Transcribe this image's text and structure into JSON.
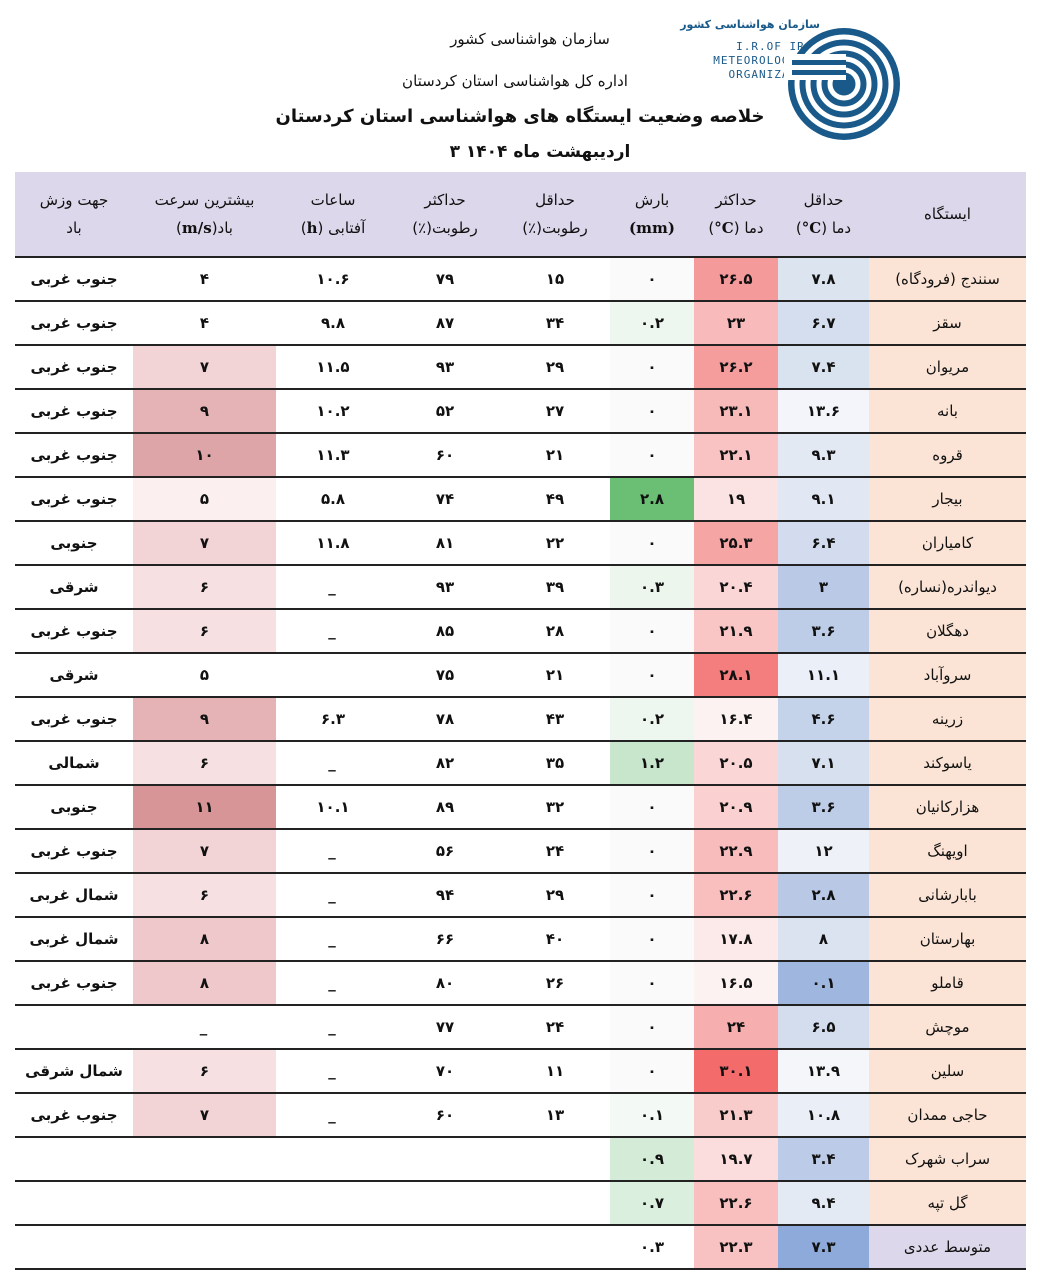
{
  "header": {
    "org": "سازمان هواشناسی کشور",
    "dept": "اداره کل هواشناسی استان کردستان",
    "title": "خلاصه وضعیت ایستگاه های هواشناسی استان کردستان",
    "date": "۳ اردیبهشت  ماه ۱۴۰۴"
  },
  "logo": {
    "fa_name": "سازمان هواشناسی کشور",
    "line1": "I.R.OF IRAN",
    "line2": "METEOROLOGICAL",
    "line3": "ORGANIZATION",
    "color": "#1a5a8a"
  },
  "columns": [
    {
      "key": "station",
      "l1": "ایستگاه",
      "l2": ""
    },
    {
      "key": "tmin",
      "l1": "حداقل",
      "l2": "دما (",
      "unit": "°C",
      "tail": ")"
    },
    {
      "key": "tmax",
      "l1": "حداکثر",
      "l2": "دما (",
      "unit": "°C",
      "tail": ")"
    },
    {
      "key": "precip",
      "l1": "بارش",
      "l2": "",
      "unit": "(mm)",
      "tail": ""
    },
    {
      "key": "hmin",
      "l1": "حداقل",
      "l2": "رطوبت(٪)"
    },
    {
      "key": "hmax",
      "l1": "حداکثر",
      "l2": "رطوبت(٪)"
    },
    {
      "key": "sun",
      "l1": "ساعات",
      "l2": "آفتابی (",
      "unit": "h",
      "tail": ")"
    },
    {
      "key": "wind",
      "l1": "بیشترین سرعت",
      "l2": "باد(",
      "unit": "m/s",
      "tail": ")"
    },
    {
      "key": "dir",
      "l1": "جهت وزش",
      "l2": "باد"
    }
  ],
  "rows": [
    {
      "station": "سنندج (فرودگاه)",
      "tmin": "۷.۸",
      "tmax": "۲۶.۵",
      "precip": "۰",
      "hmin": "۱۵",
      "hmax": "۷۹",
      "sun": "۱۰.۶",
      "wind": "۴",
      "dir": "جنوب غربی",
      "c_tmin": "#dce4f0",
      "c_tmax": "#f59a9a",
      "c_precip": "#fafafa",
      "c_wind": "#ffffff"
    },
    {
      "station": "سقز",
      "tmin": "۶.۷",
      "tmax": "۲۳",
      "precip": "۰.۲",
      "hmin": "۳۴",
      "hmax": "۸۷",
      "sun": "۹.۸",
      "wind": "۴",
      "dir": "جنوب غربی",
      "c_tmin": "#d4deee",
      "c_tmax": "#f8baba",
      "c_precip": "#eef7ef",
      "c_wind": "#ffffff"
    },
    {
      "station": "مریوان",
      "tmin": "۷.۴",
      "tmax": "۲۶.۲",
      "precip": "۰",
      "hmin": "۲۹",
      "hmax": "۹۳",
      "sun": "۱۱.۵",
      "wind": "۷",
      "dir": "جنوب غربی",
      "c_tmin": "#d9e2ef",
      "c_tmax": "#f59d9d",
      "c_precip": "#fafafa",
      "c_wind": "#f2d3d6"
    },
    {
      "station": "بانه",
      "tmin": "۱۳.۶",
      "tmax": "۲۳.۱",
      "precip": "۰",
      "hmin": "۲۷",
      "hmax": "۵۲",
      "sun": "۱۰.۲",
      "wind": "۹",
      "dir": "جنوب غربی",
      "c_tmin": "#f3f5fa",
      "c_tmax": "#f8b9b9",
      "c_precip": "#fafafa",
      "c_wind": "#e5b3b5"
    },
    {
      "station": "قروه",
      "tmin": "۹.۳",
      "tmax": "۲۲.۱",
      "precip": "۰",
      "hmin": "۲۱",
      "hmax": "۶۰",
      "sun": "۱۱.۳",
      "wind": "۱۰",
      "dir": "جنوب غربی",
      "c_tmin": "#e3e9f3",
      "c_tmax": "#f9c3c3",
      "c_precip": "#fafafa",
      "c_wind": "#dea5a8"
    },
    {
      "station": "بیجار",
      "tmin": "۹.۱",
      "tmax": "۱۹",
      "precip": "۲.۸",
      "hmin": "۴۹",
      "hmax": "۷۴",
      "sun": "۵.۸",
      "wind": "۵",
      "dir": "جنوب غربی",
      "c_tmin": "#e2e8f3",
      "c_tmax": "#fbe3e3",
      "c_precip": "#6abf74",
      "c_wind": "#fbeff0"
    },
    {
      "station": "کامیاران",
      "tmin": "۶.۴",
      "tmax": "۲۵.۳",
      "precip": "۰",
      "hmin": "۲۲",
      "hmax": "۸۱",
      "sun": "۱۱.۸",
      "wind": "۷",
      "dir": "جنوبی",
      "c_tmin": "#d2dcee",
      "c_tmax": "#f6a5a5",
      "c_precip": "#fafafa",
      "c_wind": "#f2d3d6"
    },
    {
      "station": "دیواندره(نساره)",
      "tmin": "۳",
      "tmax": "۲۰.۴",
      "precip": "۰.۳",
      "hmin": "۳۹",
      "hmax": "۹۳",
      "sun": "_",
      "wind": "۶",
      "dir": "شرقی",
      "c_tmin": "#b9c9e6",
      "c_tmax": "#fad6d6",
      "c_precip": "#ecf6ed",
      "c_wind": "#f6e0e2"
    },
    {
      "station": "دهگلان",
      "tmin": "۳.۶",
      "tmax": "۲۱.۹",
      "precip": "۰",
      "hmin": "۲۸",
      "hmax": "۸۵",
      "sun": "_",
      "wind": "۶",
      "dir": "جنوب غربی",
      "c_tmin": "#bdcce7",
      "c_tmax": "#f9c5c5",
      "c_precip": "#fafafa",
      "c_wind": "#f6e0e2"
    },
    {
      "station": "سروآباد",
      "tmin": "۱۱.۱",
      "tmax": "۲۸.۱",
      "precip": "۰",
      "hmin": "۲۱",
      "hmax": "۷۵",
      "sun": "",
      "wind": "۵",
      "dir": "شرقی",
      "c_tmin": "#ebeff7",
      "c_tmax": "#f47e7e",
      "c_precip": "#fafafa",
      "c_wind": "#ffffff"
    },
    {
      "station": "زرینه",
      "tmin": "۴.۶",
      "tmax": "۱۶.۴",
      "precip": "۰.۲",
      "hmin": "۴۳",
      "hmax": "۷۸",
      "sun": "۶.۳",
      "wind": "۹",
      "dir": "جنوب غربی",
      "c_tmin": "#c4d2ea",
      "c_tmax": "#fdf2f2",
      "c_precip": "#eef7ef",
      "c_wind": "#e5b3b5"
    },
    {
      "station": "یاسوکند",
      "tmin": "۷.۱",
      "tmax": "۲۰.۵",
      "precip": "۱.۲",
      "hmin": "۳۵",
      "hmax": "۸۲",
      "sun": "_",
      "wind": "۶",
      "dir": "شمالی",
      "c_tmin": "#d6e0ef",
      "c_tmax": "#fad6d6",
      "c_precip": "#c7e6cb",
      "c_wind": "#f6e0e2"
    },
    {
      "station": "هزارکانیان",
      "tmin": "۳.۶",
      "tmax": "۲۰.۹",
      "precip": "۰",
      "hmin": "۳۲",
      "hmax": "۸۹",
      "sun": "۱۰.۱",
      "wind": "۱۱",
      "dir": "جنوبی",
      "c_tmin": "#bdcce7",
      "c_tmax": "#fad0d0",
      "c_precip": "#fafafa",
      "c_wind": "#d89597"
    },
    {
      "station": "اویهنگ",
      "tmin": "۱۲",
      "tmax": "۲۲.۹",
      "precip": "۰",
      "hmin": "۲۴",
      "hmax": "۵۶",
      "sun": "_",
      "wind": "۷",
      "dir": "جنوب غربی",
      "c_tmin": "#eef2f8",
      "c_tmax": "#f8bcbc",
      "c_precip": "#fafafa",
      "c_wind": "#f2d3d6"
    },
    {
      "station": "بابارشانی",
      "tmin": "۲.۸",
      "tmax": "۲۲.۶",
      "precip": "۰",
      "hmin": "۲۹",
      "hmax": "۹۴",
      "sun": "_",
      "wind": "۶",
      "dir": "شمال غربی",
      "c_tmin": "#b8c8e5",
      "c_tmax": "#f9bfbf",
      "c_precip": "#fafafa",
      "c_wind": "#f6e0e2"
    },
    {
      "station": "بهارستان",
      "tmin": "۸",
      "tmax": "۱۷.۸",
      "precip": "۰",
      "hmin": "۴۰",
      "hmax": "۶۶",
      "sun": "_",
      "wind": "۸",
      "dir": "شمال غربی",
      "c_tmin": "#dbe3f0",
      "c_tmax": "#fce9e9",
      "c_precip": "#fafafa",
      "c_wind": "#efc8cb"
    },
    {
      "station": "قاملو",
      "tmin": "۰.۱",
      "tmax": "۱۶.۵",
      "precip": "۰",
      "hmin": "۲۶",
      "hmax": "۸۰",
      "sun": "_",
      "wind": "۸",
      "dir": "جنوب غربی",
      "c_tmin": "#9fb6de",
      "c_tmax": "#fdf2f2",
      "c_precip": "#fafafa",
      "c_wind": "#efc8cb"
    },
    {
      "station": "موچش",
      "tmin": "۶.۵",
      "tmax": "۲۴",
      "precip": "۰",
      "hmin": "۲۴",
      "hmax": "۷۷",
      "sun": "_",
      "wind": "_",
      "dir": "",
      "c_tmin": "#d3ddee",
      "c_tmax": "#f7aeae",
      "c_precip": "#fafafa",
      "c_wind": "#ffffff"
    },
    {
      "station": "سلین",
      "tmin": "۱۳.۹",
      "tmax": "۳۰.۱",
      "precip": "۰",
      "hmin": "۱۱",
      "hmax": "۷۰",
      "sun": "_",
      "wind": "۶",
      "dir": "شمال شرقی",
      "c_tmin": "#f4f6fa",
      "c_tmax": "#f36b6b",
      "c_precip": "#fafafa",
      "c_wind": "#f6e0e2"
    },
    {
      "station": "حاجی ممدان",
      "tmin": "۱۰.۸",
      "tmax": "۲۱.۳",
      "precip": "۰.۱",
      "hmin": "۱۳",
      "hmax": "۶۰",
      "sun": "_",
      "wind": "۷",
      "dir": "جنوب غربی",
      "c_tmin": "#eaeef7",
      "c_tmax": "#f9cccc",
      "c_precip": "#f3f9f4",
      "c_wind": "#f2d3d6"
    },
    {
      "station": "سراب شهرک",
      "tmin": "۳.۴",
      "tmax": "۱۹.۷",
      "precip": "۰.۹",
      "hmin": "",
      "hmax": "",
      "sun": "",
      "wind": "",
      "dir": "",
      "c_tmin": "#bccbe7",
      "c_tmax": "#fbdddd",
      "c_precip": "#d4ecd7",
      "c_wind": "#ffffff"
    },
    {
      "station": "گل تپه",
      "tmin": "۹.۴",
      "tmax": "۲۲.۶",
      "precip": "۰.۷",
      "hmin": "",
      "hmax": "",
      "sun": "",
      "wind": "",
      "dir": "",
      "c_tmin": "#e4eaf4",
      "c_tmax": "#f9bfbf",
      "c_precip": "#daefdd",
      "c_wind": "#ffffff"
    }
  ],
  "average": {
    "station": "متوسط عددی",
    "tmin": "۷.۳",
    "tmax": "۲۲.۳",
    "precip": "۰.۳",
    "c_tmin": "#8eaadb",
    "c_tmax": "#f9c2c2"
  }
}
